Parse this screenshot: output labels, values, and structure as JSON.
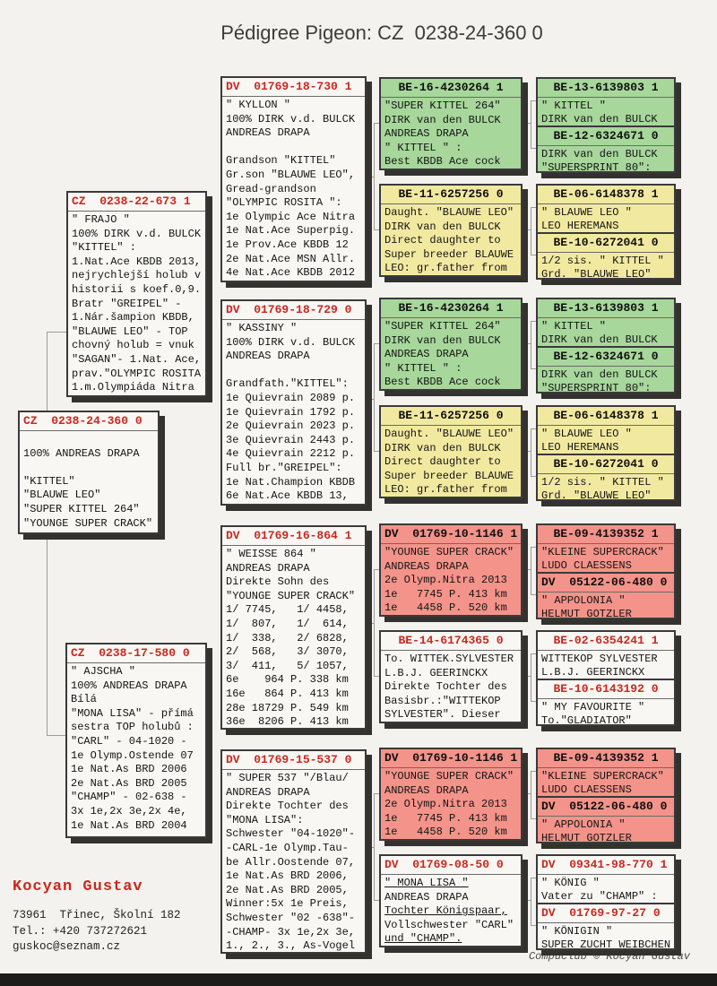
{
  "title": "Pédigree Pigeon: CZ  0238-24-360 0",
  "boxes": {
    "subject": {
      "header": "CZ  0238-24-360 0",
      "lines": [
        "",
        "100% ANDREAS DRAPA",
        "",
        "\"KITTEL\"",
        "\"BLAUWE LEO\"",
        "\"SUPER KITTEL 264\"",
        "\"YOUNGE SUPER CRACK\""
      ]
    },
    "father": {
      "header": "CZ  0238-22-673 1",
      "lines": [
        "\" FRAJO \"",
        "100% DIRK v.d. BULCK",
        "\"KITTEL\" :",
        "1.Nat.Ace KBDB 2013,",
        "nejrychlejší holub v",
        "historii s koef.0,9.",
        "Bratr \"GREIPEL\" -",
        "1.Nár.šampion KBDB,",
        "\"BLAUWE LEO\" - TOP",
        "chovný holub = vnuk",
        "\"SAGAN\"- 1.Nat. Ace,",
        "prav.\"OLYMPIC ROSITA",
        "1.m.Olympiáda Nitra"
      ]
    },
    "mother": {
      "header": "CZ  0238-17-580 0",
      "lines": [
        "\" AJSCHA \"",
        "100% ANDREAS DRAPA",
        "Bílá",
        "\"MONA LISA\" - přímá",
        "sestra TOP holubů :",
        "\"CARL\" - 04-1020 -",
        "1e Olymp.Ostende 07",
        "1e Nat.As BRD 2006",
        "2e Nat.As BRD 2005",
        "\"CHAMP\" - 02-638 -",
        "3x 1e,2x 3e,2x 4e,",
        "1e Nat.As BRD 2004"
      ]
    },
    "kyllon": {
      "header": "DV  01769-18-730 1",
      "lines": [
        "\" KYLLON \"",
        "100% DIRK v.d. BULCK",
        "ANDREAS DRAPA",
        "",
        "Grandson \"KITTEL\"",
        "Gr.son \"BLAUWE LEO\",",
        "Gread-grandson",
        "\"OLYMPIC ROSITA \":",
        "1e Olympic Ace Nitra",
        "1e Nat.Ace Superpig.",
        "1e Prov.Ace KBDB 12",
        "2e Nat.Ace MSN Allr.",
        "4e Nat.Ace KBDB 2012"
      ]
    },
    "kassiny": {
      "header": "DV  01769-18-729 0",
      "lines": [
        "\" KASSINY \"",
        "100% DIRK v.d. BULCK",
        "ANDREAS DRAPA",
        "",
        "Grandfath.\"KITTEL\":",
        "1e Quievrain 2089 p.",
        "1e Quievrain 1792 p.",
        "2e Quievrain 2023 p.",
        "3e Quievrain 2443 p.",
        "4e Quievrain 2212 p.",
        "Full br.\"GREIPEL\":",
        "1e Nat.Champion KBDB",
        "6e Nat.Ace KBDB 13,"
      ]
    },
    "weisse": {
      "header": "DV  01769-16-864 1",
      "lines": [
        "\" WEISSE 864 \"",
        "ANDREAS DRAPA",
        "Direkte Sohn des",
        "\"YOUNGE SUPER CRACK\"",
        "1/ 7745,   1/ 4458,",
        "1/  807,   1/  614,",
        "1/  338,   2/ 6828,",
        "2/  568,   3/ 3070,",
        "3/  411,   5/ 1057,",
        "6e    964 P. 338 km",
        "16e   864 P. 413 km",
        "28e 18729 P. 549 km",
        "36e  8206 P. 413 km"
      ]
    },
    "super537": {
      "header": "DV  01769-15-537 0",
      "lines": [
        "\" SUPER 537 \"/Blau/",
        "ANDREAS DRAPA",
        "Direkte Tochter des",
        "\"MONA LISA\":",
        "Schwester \"04-1020\"-",
        "-CARL-1e Olymp.Tau-",
        "be Allr.Oostende 07,",
        "1e Nat.As BRD 2006,",
        "2e Nat.As BRD 2005,",
        "Winner:5x 1e Preis,",
        "Schwester \"02 -638\"-",
        "-CHAMP- 3x 1e,2x 3e,",
        "1., 2., 3., As-Vogel"
      ]
    },
    "superkittel": {
      "header": "BE-16-4230264 1",
      "lines": [
        "\"SUPER KITTEL 264\"",
        "DIRK van den BULCK",
        "ANDREAS DRAPA",
        "\" KITTEL \" :",
        "Best KBDB Ace cock"
      ]
    },
    "blauwedau": {
      "header": "BE-11-6257256 0",
      "lines": [
        "Daught. \"BLAUWE LEO\"",
        "DIRK van den BULCK",
        "Direct daughter to",
        "Super breeder BLAUWE",
        "LEO: gr.father from"
      ]
    },
    "youngesc": {
      "header": "DV  01769-10-1146 1",
      "lines": [
        "\"YOUNGE SUPER CRACK\"",
        "ANDREAS DRAPA",
        "2e Olymp.Nitra 2013",
        "1e   7745 P. 413 km",
        "1e   4458 P. 520 km"
      ]
    },
    "wittekdau": {
      "header": "BE-14-6174365 0",
      "lines": [
        "To. WITTEK.SYLVESTER",
        "L.B.J. GEERINCKX",
        "Direkte Tochter des",
        "Basisbr.:\"WITTEKOP",
        "SYLVESTER\". Dieser"
      ]
    },
    "monalisa": {
      "header": "DV  01769-08-50 0",
      "lines": [
        {
          "t": "\" MONA LISA \"",
          "u": true
        },
        "ANDREAS DRAPA",
        {
          "t": "Tochter Königspaar,",
          "u": true
        },
        "Vollschwester \"CARL\"",
        {
          "t": "und \"CHAMP\".",
          "u": true
        }
      ]
    },
    "kittelpair": {
      "top": {
        "header": "BE-13-6139803 1",
        "lines": [
          "\" KITTEL \"",
          "DIRK van den BULCK"
        ]
      },
      "bottom": {
        "header": "BE-12-6324671 0",
        "lines": [
          "DIRK van den BULCK",
          "\"SUPERSPRINT 80\":"
        ]
      }
    },
    "blauwepair": {
      "top": {
        "header": "BE-06-6148378 1",
        "lines": [
          "\" BLAUWE LEO \"",
          "LEO HEREMANS"
        ]
      },
      "bottom": {
        "header": "BE-10-6272041 0",
        "lines": [
          "1/2 sis. \" KITTEL \"",
          "Grd. \"BLAUWE LEO\""
        ]
      }
    },
    "kleinepair": {
      "top": {
        "header": "BE-09-4139352 1",
        "lines": [
          "\"KLEINE SUPERCRACK\"",
          "LUDO CLAESSENS"
        ]
      },
      "bottom": {
        "header": "DV  05122-06-480 0",
        "lines": [
          "\" APPOLONIA \"",
          {
            "t": "HELMUT GOTZLER",
            "u": true
          }
        ]
      }
    },
    "wittekoppair": {
      "top": {
        "header": "BE-02-6354241 1",
        "lines": [
          "WITTEKOP SYLVESTER",
          "L.B.J. GEERINCKX"
        ]
      },
      "bottom": {
        "header": "BE-10-6143192 0",
        "lines": [
          "\" MY FAVOURITE \"",
          "To.\"GLADIATOR\""
        ]
      }
    },
    "koenigpair": {
      "top": {
        "header": "DV  09341-98-770 1",
        "lines": [
          "\" KÖNIG \"",
          "Vater zu \"CHAMP\" :"
        ]
      },
      "bottom": {
        "header": "DV  01769-97-27 0",
        "lines": [
          "\" KÖNIGIN \"",
          "SUPER ZUCHT WEIBCHEN"
        ]
      }
    }
  },
  "footer": {
    "owner": "Kocyan Gustav",
    "address": "73961  Třinec, Školní 182",
    "phone": "Tel.: +420 737272621",
    "email": "guskoc@seznam.cz",
    "credit": "Compuclub © Kocyan Gustav"
  },
  "colors": {
    "green": "#a7d79b",
    "yellow": "#f2e9a1",
    "pink": "#f4938a",
    "header_red": "#c9281f"
  }
}
